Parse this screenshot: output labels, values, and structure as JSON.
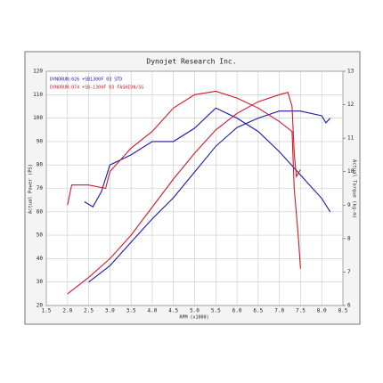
{
  "chart_data": {
    "type": "line",
    "title": "Dynojet Research Inc.",
    "xlabel": "RPM (x1000)",
    "ylabel": "Actual Power (PS)",
    "y2label": "Actual Torque (kg-m)",
    "xlim": [
      1.5,
      8.5
    ],
    "xticks": [
      1.5,
      {
        "value": 2,
        "label": "2.0"
      },
      2.5,
      {
        "value": 3,
        "label": "3.0"
      },
      3.5,
      {
        "value": 4,
        "label": "4.0"
      },
      4.5,
      {
        "value": 5,
        "label": "5.0"
      },
      5.5,
      {
        "value": 6,
        "label": "6.0"
      },
      6.5,
      {
        "value": 7,
        "label": "7.0"
      },
      7.5,
      {
        "value": 8,
        "label": "8.0"
      },
      8.5
    ],
    "ylim": [
      20,
      120
    ],
    "yticks": [
      20,
      30,
      40,
      50,
      60,
      70,
      80,
      90,
      100,
      110,
      120
    ],
    "y2lim": [
      6,
      13
    ],
    "y2ticks": [
      6,
      7,
      8,
      9,
      10,
      11,
      12,
      13
    ],
    "grid": true,
    "runs": [
      {
        "name": "DYNORUN:026  +SB1300F 03 STD",
        "color": "#1a1aa8",
        "power_x": [
          2.5,
          3.0,
          3.5,
          4.0,
          4.5,
          5.0,
          5.5,
          6.0,
          6.5,
          7.0,
          7.5,
          8.0,
          8.1,
          8.2
        ],
        "power": [
          30,
          37,
          47,
          57,
          66,
          77,
          88,
          96,
          100,
          103,
          103,
          101,
          98,
          100
        ],
        "torque_x": [
          2.4,
          2.6,
          2.8,
          3.0,
          3.5,
          4.0,
          4.5,
          5.0,
          5.5,
          6.0,
          6.5,
          7.0,
          7.5,
          8.0,
          8.2
        ],
        "torque": [
          9.1,
          8.95,
          9.4,
          10.2,
          10.5,
          10.9,
          10.9,
          11.3,
          11.9,
          11.6,
          11.2,
          10.6,
          9.9,
          9.2,
          8.8
        ]
      },
      {
        "name": "DYNORUN:074  +SB-1300F 03 FASHION/SG",
        "color": "#d01a2a",
        "power_x": [
          2.0,
          2.5,
          3.0,
          3.5,
          4.0,
          4.5,
          5.0,
          5.5,
          6.0,
          6.5,
          7.0,
          7.2,
          7.3,
          7.35,
          7.4,
          7.5
        ],
        "power": [
          25,
          32,
          40,
          50,
          62,
          74,
          85,
          95,
          102,
          107,
          110,
          111,
          105,
          85,
          75,
          78
        ],
        "torque_x": [
          2.0,
          2.1,
          2.5,
          2.9,
          3.0,
          3.5,
          4.0,
          4.5,
          5.0,
          5.5,
          6.0,
          6.5,
          7.0,
          7.3,
          7.35,
          7.45,
          7.5
        ],
        "torque": [
          9.0,
          9.6,
          9.6,
          9.5,
          10.0,
          10.7,
          11.2,
          11.9,
          12.3,
          12.4,
          12.2,
          11.9,
          11.5,
          11.2,
          9.5,
          8.0,
          7.1
        ]
      }
    ]
  }
}
